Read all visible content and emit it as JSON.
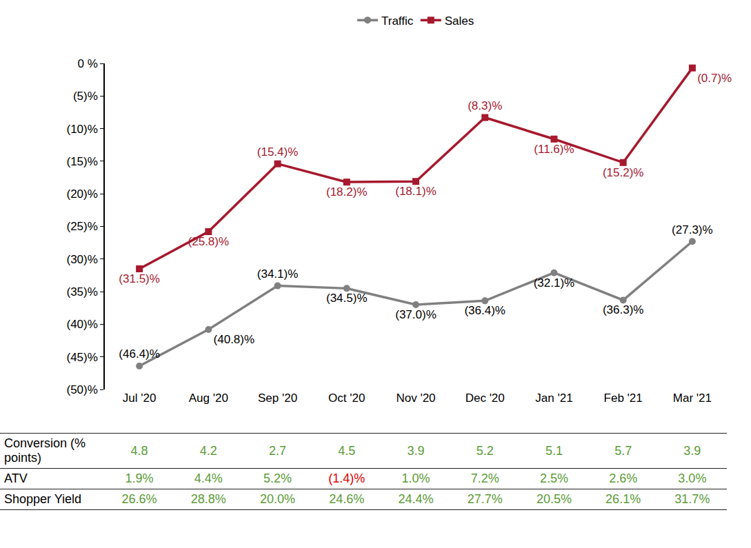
{
  "chart_data": {
    "type": "line",
    "categories": [
      "Jul '20",
      "Aug '20",
      "Sep '20",
      "Oct '20",
      "Nov '20",
      "Dec '20",
      "Jan '21",
      "Feb '21",
      "Mar '21"
    ],
    "series": [
      {
        "name": "Traffic",
        "color": "#808080",
        "marker": "circle",
        "values": [
          -46.4,
          -40.8,
          -34.1,
          -34.5,
          -37.0,
          -36.4,
          -32.1,
          -36.3,
          -27.3
        ],
        "value_labels": [
          "(46.4)%",
          "(40.8)%",
          "(34.1)%",
          "(34.5)%",
          "(37.0)%",
          "(36.4)%",
          "(32.1)%",
          "(36.3)%",
          "(27.3)%"
        ]
      },
      {
        "name": "Sales",
        "color": "#A6192E",
        "marker": "square",
        "values": [
          -31.5,
          -25.8,
          -15.4,
          -18.2,
          -18.1,
          -8.3,
          -11.6,
          -15.2,
          -0.7
        ],
        "value_labels": [
          "(31.5)%",
          "(25.8)%",
          "(15.4)%",
          "(18.2)%",
          "(18.1)%",
          "(8.3)%",
          "(11.6)%",
          "(15.2)%",
          "(0.7)%"
        ]
      }
    ],
    "ylim": [
      -50,
      0
    ],
    "yticks": [
      {
        "value": 0,
        "label": "0 %"
      },
      {
        "value": -5,
        "label": "(5)%"
      },
      {
        "value": -10,
        "label": "(10)%"
      },
      {
        "value": -15,
        "label": "(15)%"
      },
      {
        "value": -20,
        "label": "(20)%"
      },
      {
        "value": -25,
        "label": "(25)%"
      },
      {
        "value": -30,
        "label": "(30)%"
      },
      {
        "value": -35,
        "label": "(35)%"
      },
      {
        "value": -40,
        "label": "(40)%"
      },
      {
        "value": -45,
        "label": "(45)%"
      },
      {
        "value": -50,
        "label": "(50)%"
      }
    ],
    "grid": false,
    "legend": "top",
    "data_labels": true
  },
  "table": {
    "rows": [
      {
        "label": "Conversion (% points)",
        "cells": [
          "4.8",
          "4.2",
          "2.7",
          "4.5",
          "3.9",
          "5.2",
          "5.1",
          "5.7",
          "3.9"
        ]
      },
      {
        "label": "ATV",
        "cells": [
          "1.9%",
          "4.4%",
          "5.2%",
          "(1.4)%",
          "1.0%",
          "7.2%",
          "2.5%",
          "2.6%",
          "3.0%"
        ]
      },
      {
        "label": "Shopper Yield",
        "cells": [
          "26.6%",
          "28.8%",
          "20.0%",
          "24.6%",
          "24.4%",
          "27.7%",
          "20.5%",
          "26.1%",
          "31.7%"
        ]
      }
    ]
  }
}
